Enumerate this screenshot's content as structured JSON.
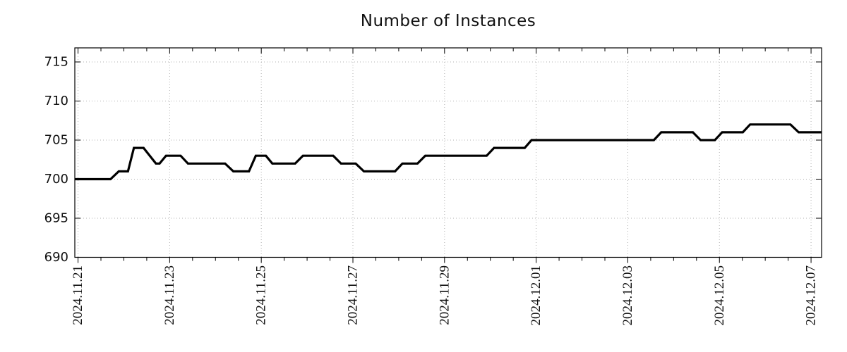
{
  "title": "Number of Instances",
  "chart_data": {
    "type": "line",
    "title": "Number of Instances",
    "legend": "none",
    "grid": {
      "style": "dotted",
      "color": "#b0b0b0"
    },
    "x_axis": {
      "origin_date": "2024-11-21",
      "tick_labels": [
        "2024.11.21",
        "2024.11.23",
        "2024.11.25",
        "2024.11.27",
        "2024.11.29",
        "2024.12.01",
        "2024.12.03",
        "2024.12.05",
        "2024.12.07"
      ],
      "tick_positions_days": [
        0,
        2,
        4,
        6,
        8,
        10,
        12,
        14,
        16
      ],
      "minor_tick_step_days": 0.5,
      "range_days": [
        -0.07,
        16.23
      ],
      "label_rotation_deg": -90
    },
    "y_axis": {
      "tick_labels": [
        "690",
        "695",
        "700",
        "705",
        "710",
        "715"
      ],
      "tick_values": [
        690,
        695,
        700,
        705,
        710,
        715
      ],
      "range": [
        690,
        716.8
      ]
    },
    "series": [
      {
        "name": "Number of Instances",
        "color": "#000000",
        "line_width": 3.2,
        "points_day_value": [
          [
            -0.07,
            700
          ],
          [
            0.71,
            700
          ],
          [
            0.89,
            701
          ],
          [
            1.09,
            701
          ],
          [
            1.22,
            704
          ],
          [
            1.43,
            704
          ],
          [
            1.7,
            702
          ],
          [
            1.78,
            702
          ],
          [
            1.92,
            703
          ],
          [
            2.24,
            703
          ],
          [
            2.4,
            702
          ],
          [
            3.21,
            702
          ],
          [
            3.39,
            701
          ],
          [
            3.73,
            701
          ],
          [
            3.88,
            703
          ],
          [
            4.1,
            703
          ],
          [
            4.24,
            702
          ],
          [
            4.74,
            702
          ],
          [
            4.91,
            703
          ],
          [
            5.57,
            703
          ],
          [
            5.74,
            702
          ],
          [
            6.06,
            702
          ],
          [
            6.24,
            701
          ],
          [
            6.92,
            701
          ],
          [
            7.08,
            702
          ],
          [
            7.41,
            702
          ],
          [
            7.58,
            703
          ],
          [
            8.92,
            703
          ],
          [
            9.08,
            704
          ],
          [
            9.75,
            704
          ],
          [
            9.9,
            705
          ],
          [
            12.57,
            705
          ],
          [
            12.73,
            706
          ],
          [
            13.42,
            706
          ],
          [
            13.59,
            705
          ],
          [
            13.9,
            705
          ],
          [
            14.06,
            706
          ],
          [
            14.51,
            706
          ],
          [
            14.67,
            707
          ],
          [
            15.55,
            707
          ],
          [
            15.73,
            706
          ],
          [
            16.23,
            706
          ]
        ]
      }
    ]
  }
}
